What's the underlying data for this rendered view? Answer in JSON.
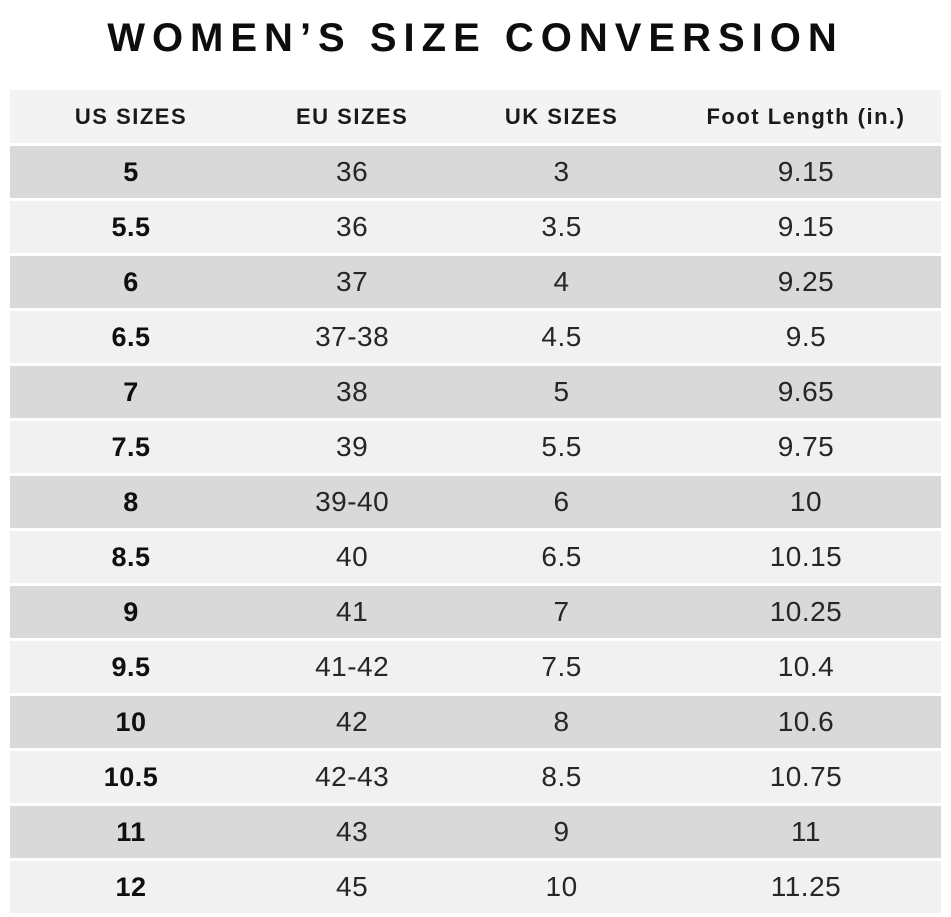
{
  "title": "WOMEN’S SIZE CONVERSION",
  "table": {
    "headers": [
      "US SIZES",
      "EU SIZES",
      "UK SIZES",
      "Foot Length (in.)"
    ],
    "rows": [
      [
        "5",
        "36",
        "3",
        "9.15"
      ],
      [
        "5.5",
        "36",
        "3.5",
        "9.15"
      ],
      [
        "6",
        "37",
        "4",
        "9.25"
      ],
      [
        "6.5",
        "37-38",
        "4.5",
        "9.5"
      ],
      [
        "7",
        "38",
        "5",
        "9.65"
      ],
      [
        "7.5",
        "39",
        "5.5",
        "9.75"
      ],
      [
        "8",
        "39-40",
        "6",
        "10"
      ],
      [
        "8.5",
        "40",
        "6.5",
        "10.15"
      ],
      [
        "9",
        "41",
        "7",
        "10.25"
      ],
      [
        "9.5",
        "41-42",
        "7.5",
        "10.4"
      ],
      [
        "10",
        "42",
        "8",
        "10.6"
      ],
      [
        "10.5",
        "42-43",
        "8.5",
        "10.75"
      ],
      [
        "11",
        "43",
        "9",
        "11"
      ],
      [
        "12",
        "45",
        "10",
        "11.25"
      ]
    ],
    "colors": {
      "row_dark": "#d9d9da",
      "row_light": "#f2f1f2",
      "header_bg": "#f4f3f4",
      "title_text": "#0d0d0d",
      "body_text": "#262626"
    }
  }
}
